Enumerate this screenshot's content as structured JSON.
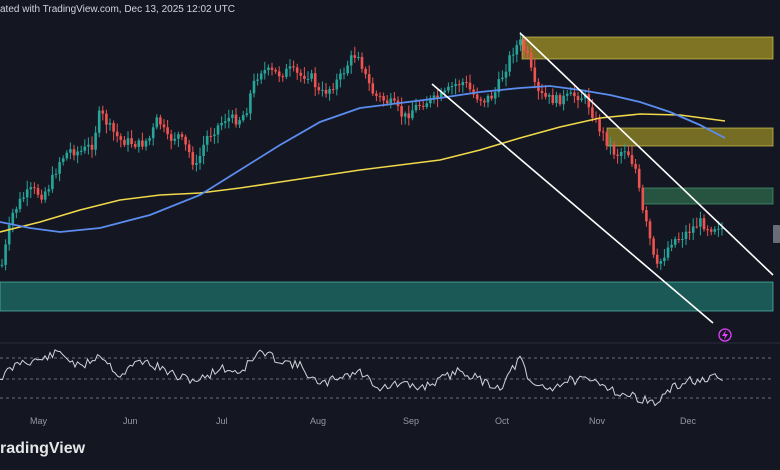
{
  "header": {
    "text": "ated with TradingView.com, Dec 13, 2025 12:02 UTC"
  },
  "footer": {
    "brand": "radingView"
  },
  "colors": {
    "background": "#141722",
    "up_candle": "#26a69a",
    "down_candle": "#ef5350",
    "ma_blue": "#5b8def",
    "ma_yellow": "#f0d84a",
    "zone_teal": "#1f8f7f",
    "zone_yellow": "#b8a626",
    "zone_green": "#2f6e4e",
    "channel": "#ffffff",
    "rsi_line": "#d1d4dc",
    "icon_accent": "#e040fb"
  },
  "icons": {
    "lightning": "lightning-icon"
  },
  "chart_data": {
    "type": "candlestick",
    "x_tick_labels": [
      "May",
      "Jun",
      "Jul",
      "Aug",
      "Sep",
      "Oct",
      "Nov",
      "Dec"
    ],
    "grid": false,
    "overlays": [
      "blue moving average",
      "yellow moving average",
      "descending parallel channel",
      "support and resistance zones"
    ],
    "indicator_panel": "oscillator line with dashed reference levels"
  }
}
